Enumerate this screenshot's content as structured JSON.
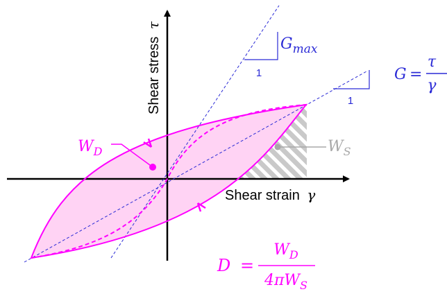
{
  "axes": {
    "x_label": "Shear strain",
    "x_symbol": "γ",
    "y_label": "Shear stress",
    "y_symbol": "τ"
  },
  "gmax": {
    "symbol": "G",
    "subscript": "max",
    "slope_unit": "1"
  },
  "g_secant": {
    "lhs": "G",
    "eq": "=",
    "numerator": "τ",
    "denominator": "γ",
    "slope_unit": "1"
  },
  "energy": {
    "wd_base": "W",
    "wd_sub": "D",
    "ws_base": "W",
    "ws_sub": "S"
  },
  "damping": {
    "lhs": "D",
    "eq": "=",
    "num_base": "W",
    "num_sub": "D",
    "den_prefix": "4πW",
    "den_sub": "S"
  },
  "colors": {
    "loop": "#ff00ff",
    "loop_fill": "#ffd3f4",
    "blue": "#2a2ad6",
    "gray": "#a8a8a8",
    "axis": "#000000"
  }
}
